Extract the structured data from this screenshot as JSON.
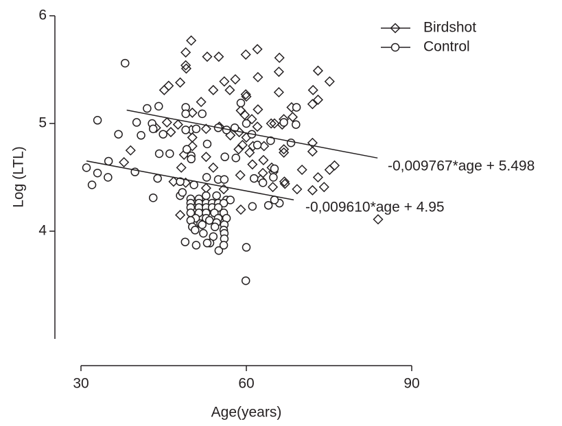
{
  "chart_data": {
    "type": "scatter",
    "xlabel": "Age(years)",
    "ylabel": "Log (LTL)",
    "xlim": [
      30,
      90
    ],
    "xticks": [
      30,
      60,
      90
    ],
    "ylim": [
      3,
      6
    ],
    "yticks": [
      4,
      5,
      6
    ],
    "series": [
      {
        "name": "Birdshot",
        "marker": "diamond",
        "color": "#231f20",
        "x": [
          50.0,
          49.0,
          49.0,
          49.1,
          52.9,
          55.0,
          59.9,
          62.0,
          66.0,
          65.9,
          62.1,
          73.0,
          75.1,
          56.0,
          58.0,
          57.0,
          54.0,
          51.8,
          48.0,
          45.9,
          45.1,
          59.9,
          60.0,
          65.9,
          72.1,
          73.0,
          72.0,
          68.2,
          62.1,
          59.0,
          50.2,
          59.7,
          68.4,
          61.0,
          65.1,
          66.8,
          45.6,
          47.6,
          43.6,
          50.0,
          52.7,
          55.1,
          62.0,
          64.5,
          66.5,
          58.7,
          57.1,
          46.3,
          60.0,
          50.2,
          39.0,
          37.8,
          50.2,
          59.3,
          61.2,
          63.2,
          66.8,
          66.8,
          72.0,
          72.0,
          60.6,
          58.6,
          48.7,
          52.7,
          63.1,
          61.1,
          76.0,
          75.1,
          64.6,
          64.9,
          63.0,
          70.1,
          54.0,
          48.2,
          58.9,
          73.0,
          74.1,
          72.0,
          69.2,
          66.9,
          67.0,
          64.8,
          62.6,
          49.0,
          46.8,
          55.9,
          52.7,
          59.0,
          83.9,
          48.0
        ],
        "values": [
          5.77,
          5.66,
          5.54,
          5.51,
          5.62,
          5.62,
          5.64,
          5.69,
          5.61,
          5.48,
          5.43,
          5.49,
          5.39,
          5.39,
          5.41,
          5.31,
          5.31,
          5.2,
          5.38,
          5.35,
          5.31,
          5.27,
          5.25,
          5.29,
          5.31,
          5.22,
          5.18,
          5.15,
          5.13,
          5.12,
          5.1,
          5.08,
          5.06,
          5.04,
          5.0,
          5.04,
          5.01,
          4.99,
          4.96,
          4.94,
          4.95,
          4.97,
          4.97,
          5.0,
          4.99,
          4.92,
          4.89,
          4.92,
          4.87,
          4.87,
          4.75,
          4.64,
          4.79,
          4.8,
          4.79,
          4.79,
          4.76,
          4.73,
          4.82,
          4.74,
          4.73,
          4.76,
          4.71,
          4.69,
          4.66,
          4.62,
          4.61,
          4.57,
          4.59,
          4.55,
          4.54,
          4.57,
          4.59,
          4.59,
          4.52,
          4.5,
          4.41,
          4.38,
          4.39,
          4.46,
          4.44,
          4.41,
          4.48,
          4.45,
          4.46,
          4.39,
          4.4,
          4.2,
          4.11,
          4.15
        ]
      },
      {
        "name": "Control",
        "marker": "circle",
        "color": "#231f20",
        "x": [
          38.0,
          33.0,
          42.0,
          44.1,
          49.0,
          49.0,
          52.0,
          40.1,
          42.9,
          36.8,
          40.9,
          43.1,
          44.9,
          49.0,
          50.9,
          54.9,
          57.9,
          56.4,
          59.0,
          60.0,
          61.0,
          69.1,
          69.0,
          66.8,
          64.4,
          68.1,
          62.0,
          52.9,
          49.2,
          50.0,
          50.0,
          44.2,
          46.1,
          56.1,
          58.1,
          35.0,
          31.0,
          32.0,
          33.0,
          34.9,
          39.8,
          43.9,
          48.0,
          50.5,
          52.8,
          54.9,
          56.0,
          61.4,
          64.9,
          65.1,
          63.0,
          43.1,
          48.0,
          52.7,
          54.6,
          56.4,
          57.1,
          49.9,
          51.4,
          49.9,
          51.4,
          52.7,
          53.8,
          54.9,
          55.9,
          49.9,
          51.4,
          52.7,
          53.8,
          54.9,
          49.9,
          51.4,
          52.7,
          54.2,
          55.9,
          50.8,
          52.7,
          54.9,
          56.4,
          49.9,
          51.7,
          53.3,
          54.6,
          56.0,
          50.2,
          52.0,
          54.3,
          55.9,
          56.0,
          56.0,
          54.0,
          52.2,
          50.7,
          53.4,
          50.9,
          52.9,
          55.0,
          55.9,
          48.9,
          60.0,
          59.9,
          66.0,
          64.0,
          65.1,
          61.1,
          48.4
        ],
        "values": [
          5.56,
          5.03,
          5.14,
          5.16,
          5.15,
          5.09,
          5.09,
          5.01,
          5.0,
          4.9,
          4.89,
          4.95,
          4.9,
          4.94,
          4.95,
          4.96,
          4.96,
          4.94,
          5.19,
          5.0,
          4.9,
          5.15,
          4.99,
          5.01,
          4.84,
          4.82,
          4.8,
          4.81,
          4.76,
          4.7,
          4.67,
          4.72,
          4.72,
          4.69,
          4.68,
          4.65,
          4.59,
          4.43,
          4.54,
          4.5,
          4.55,
          4.49,
          4.46,
          4.43,
          4.5,
          4.48,
          4.48,
          4.49,
          4.5,
          4.58,
          4.45,
          4.31,
          4.33,
          4.33,
          4.33,
          4.29,
          4.29,
          4.3,
          4.3,
          4.26,
          4.26,
          4.26,
          4.26,
          4.26,
          4.26,
          4.22,
          4.22,
          4.22,
          4.22,
          4.22,
          4.17,
          4.17,
          4.17,
          4.17,
          4.17,
          4.12,
          4.12,
          4.12,
          4.12,
          4.1,
          4.07,
          4.1,
          4.08,
          4.06,
          4.04,
          4.06,
          4.04,
          4.01,
          3.98,
          3.93,
          3.95,
          3.98,
          4.01,
          3.89,
          3.87,
          3.89,
          3.82,
          3.87,
          3.9,
          3.85,
          3.54,
          4.26,
          4.24,
          4.29,
          4.23,
          4.36
        ]
      }
    ],
    "fits": [
      {
        "slope": -0.009767,
        "intercept": 5.498,
        "x": [
          38.3,
          83.8
        ],
        "label": "-0,009767*age + 5.498"
      },
      {
        "slope": -0.00961,
        "intercept": 4.95,
        "x": [
          31.0,
          68.6
        ],
        "label": "-0,009610*age + 4.95"
      }
    ],
    "legend": "top-right"
  }
}
